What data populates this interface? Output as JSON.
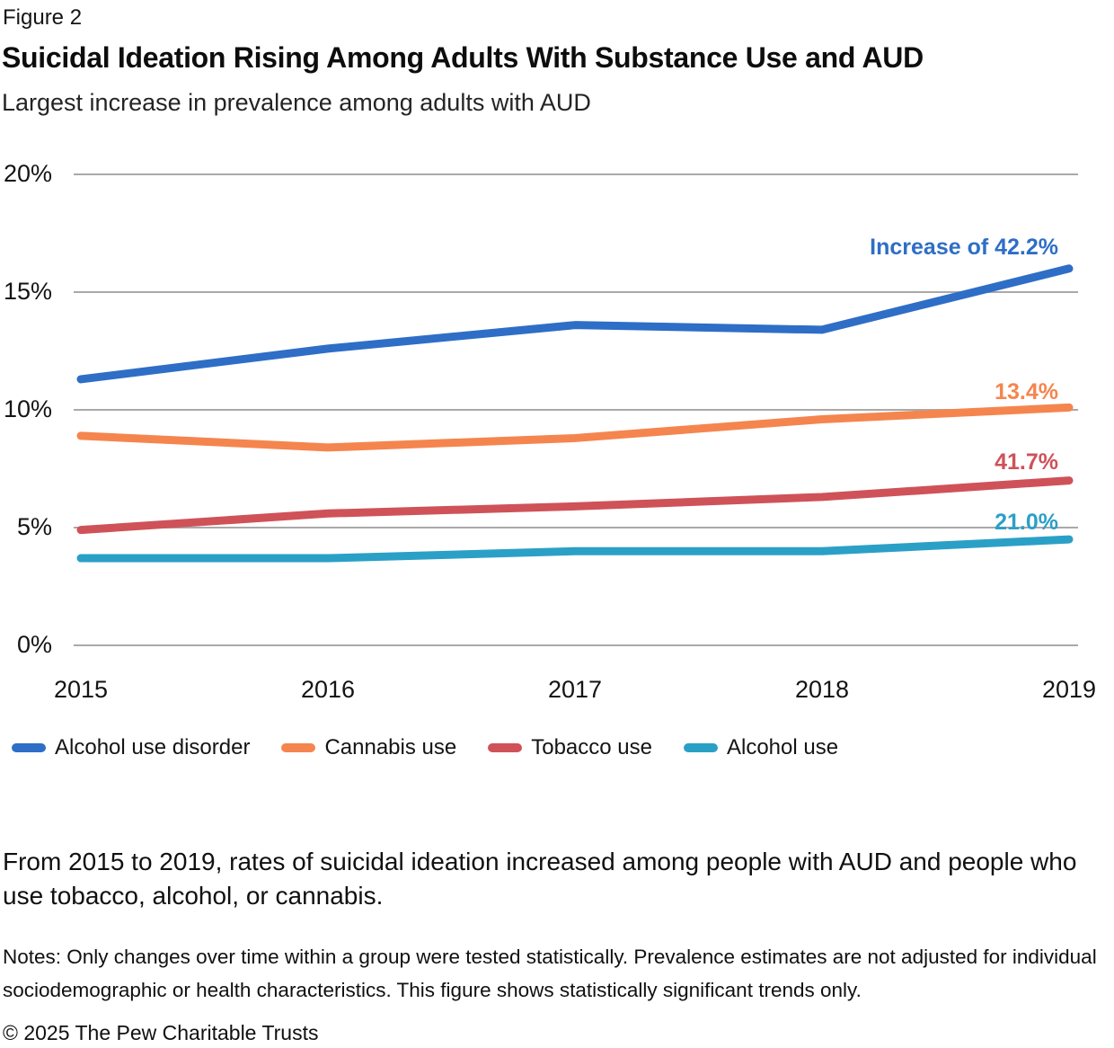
{
  "header": {
    "figure_label": "Figure 2",
    "title": "Suicidal Ideation Rising Among Adults With Substance Use and AUD",
    "subtitle": "Largest increase in prevalence among adults with AUD"
  },
  "chart_data": {
    "type": "line",
    "x": [
      2015,
      2016,
      2017,
      2018,
      2019
    ],
    "x_labels": [
      "2015",
      "2016",
      "2017",
      "2018",
      "2019"
    ],
    "series": [
      {
        "name": "Alcohol use disorder",
        "color": "#2e6ec6",
        "values": [
          11.3,
          12.6,
          13.6,
          13.4,
          16.0
        ],
        "annotation": "Increase of 42.2%"
      },
      {
        "name": "Cannabis use",
        "color": "#f5854e",
        "values": [
          8.9,
          8.4,
          8.8,
          9.6,
          10.1
        ],
        "annotation": "13.4%"
      },
      {
        "name": "Tobacco use",
        "color": "#cf5259",
        "values": [
          4.9,
          5.6,
          5.9,
          6.3,
          7.0
        ],
        "annotation": "41.7%"
      },
      {
        "name": "Alcohol use",
        "color": "#2ba0c6",
        "values": [
          3.7,
          3.7,
          4.0,
          4.0,
          4.5
        ],
        "annotation": "21.0%"
      }
    ],
    "ylim": [
      0,
      20
    ],
    "yticks": [
      0,
      5,
      10,
      15,
      20
    ],
    "ytick_suffix": "%",
    "grid": "horizontal",
    "grid_color": "#a9a9a9",
    "legend_position": "bottom"
  },
  "caption": "From 2015 to 2019, rates of suicidal ideation increased among people with AUD and people who use tobacco, alcohol, or cannabis.",
  "notes": "Notes: Only changes over time within a group were tested statistically. Prevalence estimates are not adjusted for individual sociodemographic or health characteristics. This figure shows statistically significant trends only.",
  "copyright": "© 2025 The Pew Charitable Trusts"
}
